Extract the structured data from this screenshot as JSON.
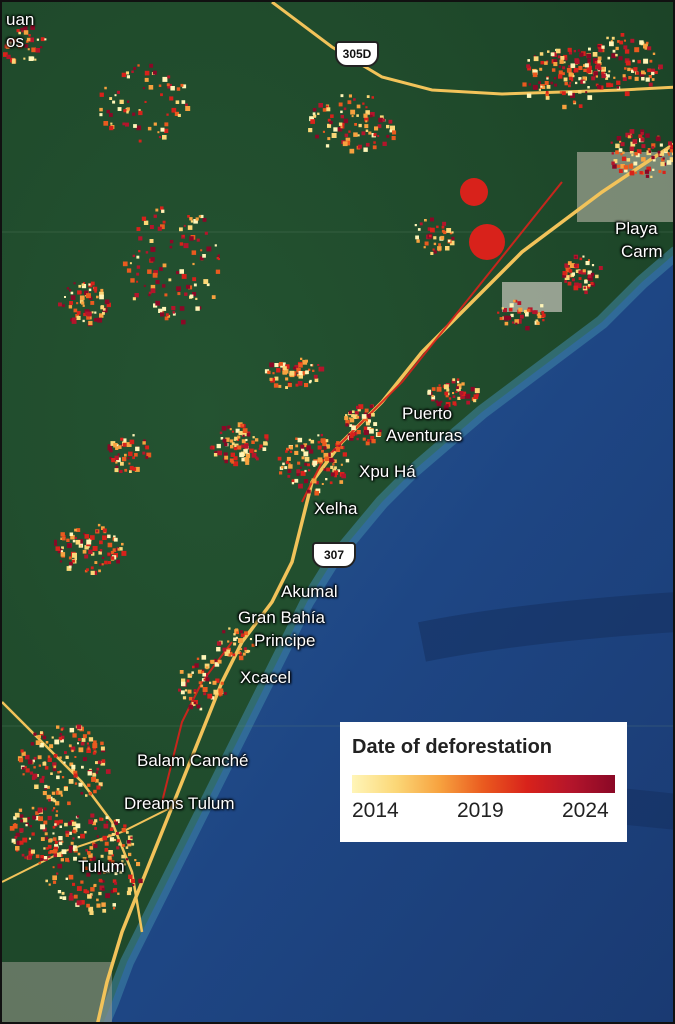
{
  "map": {
    "places": [
      {
        "name": "uan",
        "key": "top-left-a"
      },
      {
        "name": "os",
        "key": "top-left-b"
      },
      {
        "name": "Playa",
        "key": "playa-1"
      },
      {
        "name": "Carm",
        "key": "playa-2"
      },
      {
        "name": "Puerto",
        "key": "puerto-1"
      },
      {
        "name": "Aventuras",
        "key": "puerto-2"
      },
      {
        "name": "Xpu Há",
        "key": "xpuha"
      },
      {
        "name": "Xelha",
        "key": "xelha"
      },
      {
        "name": "Akumal",
        "key": "akumal"
      },
      {
        "name": "Gran Bahía",
        "key": "granbahia-1"
      },
      {
        "name": "Principe",
        "key": "granbahia-2"
      },
      {
        "name": "Xcacel",
        "key": "xcacel"
      },
      {
        "name": "Balam Canché",
        "key": "balam"
      },
      {
        "name": "Dreams Tulum",
        "key": "dreams"
      },
      {
        "name": "Tulum",
        "key": "tulum"
      }
    ],
    "road_shields": [
      "305D",
      "307"
    ],
    "colors": {
      "forest": "#1f4a2a",
      "sea": "#1c3f7a",
      "coast_water": "#2f6fa0",
      "road": "#f2c35a",
      "deforestation_new": "#8a0826",
      "deforestation_old": "#fff5b8"
    }
  },
  "legend": {
    "title": "Date of deforestation",
    "ticks": [
      "2014",
      "2019",
      "2024"
    ],
    "gradient": [
      "#fff5b8",
      "#fbd777",
      "#f7a23f",
      "#ea5a1f",
      "#d8221b",
      "#b4152b",
      "#8a0826"
    ]
  }
}
